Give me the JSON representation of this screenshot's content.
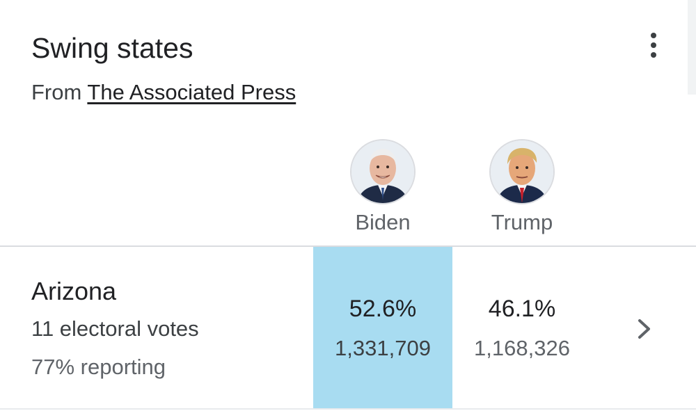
{
  "card": {
    "title": "Swing states",
    "source_prefix": "From",
    "source_link": "The Associated Press"
  },
  "icons": {
    "more": "more-vert-icon",
    "chevron": "chevron-right-icon"
  },
  "candidates": [
    {
      "name": "Biden",
      "avatar": "biden-photo"
    },
    {
      "name": "Trump",
      "avatar": "trump-photo"
    }
  ],
  "states": [
    {
      "name": "Arizona",
      "electoral_votes": "11 electoral votes",
      "reporting": "77% reporting",
      "results": [
        {
          "pct": "52.6%",
          "votes": "1,331,709",
          "leading": true
        },
        {
          "pct": "46.1%",
          "votes": "1,168,326",
          "leading": false
        }
      ]
    }
  ],
  "colors": {
    "leader_highlight": "#a8dcf1",
    "divider": "#dadce0",
    "text_primary": "#202124",
    "text_secondary": "#5f6368"
  }
}
